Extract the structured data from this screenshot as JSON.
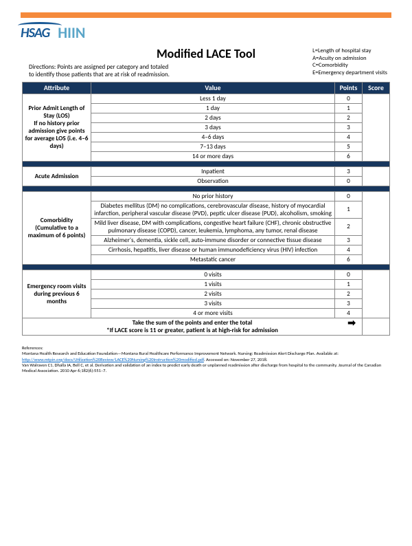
{
  "colors": {
    "top_bar": "#f58a3c",
    "header_bg": "#17365d",
    "header_text": "#ffffff",
    "hsag_color": "#1a5a96",
    "hiin_color": "#5aa5c8",
    "link_color": "#0563c1"
  },
  "logos": {
    "hsag": "HSAG",
    "hiin": "HIIN"
  },
  "title": "Modified LACE Tool",
  "legend": {
    "l": "L=Length of hospital stay",
    "a": "A=Acuity on admission",
    "c": "C=Comorbidity",
    "e": "E=Emergency department visits"
  },
  "directions": {
    "line1": "Directions: Points are assigned per category and totaled",
    "line2": "to identify those patients that are at risk of readmission."
  },
  "headers": {
    "attribute": "Attribute",
    "value": "Value",
    "points": "Points",
    "score": "Score"
  },
  "sections": {
    "los": {
      "attribute": "Prior Admit Length of Stay (LOS)\nIf no history prior admission give points for average LOS (i.e. 4–6 days)",
      "rows": [
        {
          "value": "Less 1 day",
          "points": "0"
        },
        {
          "value": "1 day",
          "points": "1"
        },
        {
          "value": "2 days",
          "points": "2"
        },
        {
          "value": "3 days",
          "points": "3"
        },
        {
          "value": "4–6 days",
          "points": "4"
        },
        {
          "value": "7–13 days",
          "points": "5"
        },
        {
          "value": "14 or more days",
          "points": "6"
        }
      ]
    },
    "acute": {
      "attribute": "Acute Admission",
      "rows": [
        {
          "value": "Inpatient",
          "points": "3"
        },
        {
          "value": "Observation",
          "points": "0"
        }
      ]
    },
    "comorbidity": {
      "attribute": "Comorbidity (Cumulative to a maximum of 6 points)",
      "rows": [
        {
          "value": "No prior history",
          "points": "0"
        },
        {
          "value": "Diabetes mellitus (DM) no complications, cerebrovascular disease, history of myocardial infarction, peripheral vascular disease (PVD), peptic ulcer disease (PUD), alcoholism, smoking",
          "points": "1"
        },
        {
          "value": "Mild liver disease, DM with complications, congestive heart failure (CHF), chronic obstructive pulmonary disease (COPD), cancer, leukemia, lymphoma, any tumor, renal disease",
          "points": "2"
        },
        {
          "value": "Alzheimer's, dementia, sickle cell, auto-immune disorder or connective tissue disease",
          "points": "3"
        },
        {
          "value": "Cirrhosis, hepatitis, liver disease or human immunodeficiency virus (HIV) infection",
          "points": "4"
        },
        {
          "value": "Metastatic cancer",
          "points": "6"
        }
      ]
    },
    "er": {
      "attribute": "Emergency room visits during previous 6 months",
      "rows": [
        {
          "value": "0 visits",
          "points": "0"
        },
        {
          "value": "1 visits",
          "points": "1"
        },
        {
          "value": "2 visits",
          "points": "2"
        },
        {
          "value": "3 visits",
          "points": "3"
        },
        {
          "value": "4 or more visits",
          "points": "4"
        }
      ]
    }
  },
  "total": {
    "line1": "Take the sum of the points and enter the total",
    "line2": "*If LACE score is 11 or greater, patient is at high-risk for admission"
  },
  "footer": {
    "refs_label": "References:",
    "ref1_pre": "Montana Health Research and Education Foundation—Montana Rural Healthcare Performance Improvement Network. Nursing: Readmission Alert Discharge Plan. Available at: ",
    "ref1_link": "http://www.mtpin.org/docs/Utilization%20Review/LACE%20Nursing%20Instruction%20modified.pdf",
    "ref1_post": ". Accessed on: November 27, 2018.",
    "ref2": "Van Walraven C1, Dhalla IA, Bell C, et al. Derivation and validation of an index to predict early death or unplanned readmission after discharge from hospital to the community. Journal of the Canadian Medical Association. 2010 Apr 6;182(6):551–7."
  }
}
